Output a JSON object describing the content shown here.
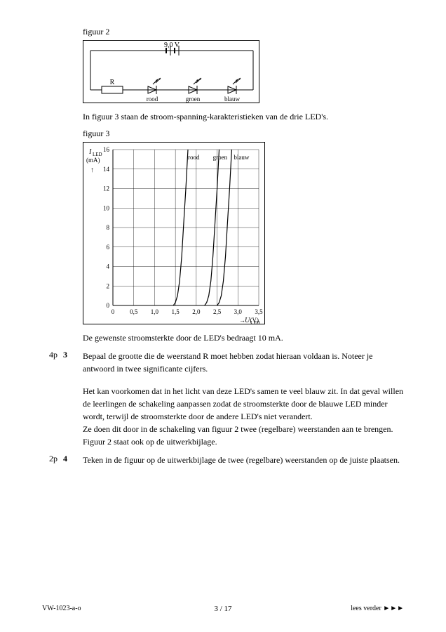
{
  "figure2": {
    "label": "figuur 2",
    "voltage": "9,0 V",
    "resistor_label": "R",
    "led_labels": [
      "rood",
      "groen",
      "blauw"
    ]
  },
  "intro_text": "In figuur 3 staan de stroom-spanning-karakteristieken van de drie LED's.",
  "figure3": {
    "label": "figuur 3",
    "type": "line",
    "y_axis_label_top": "I",
    "y_axis_label_sub": "LED",
    "y_axis_unit": "(mA)",
    "x_axis_label": "U",
    "x_axis_label_sub": "LED",
    "x_axis_unit": "(V)",
    "x_ticks": [
      0,
      0.5,
      1.0,
      1.5,
      2.0,
      2.5,
      3.0,
      3.5
    ],
    "x_tick_labels": [
      "0",
      "0,5",
      "1,0",
      "1,5",
      "2,0",
      "2,5",
      "3,0",
      "3,5"
    ],
    "y_ticks": [
      0,
      2,
      4,
      6,
      8,
      10,
      12,
      14,
      16
    ],
    "xlim": [
      0,
      3.5
    ],
    "ylim": [
      0,
      16
    ],
    "background_color": "#ffffff",
    "grid_color": "#000000",
    "line_color": "#000000",
    "line_width": 1.2,
    "curves": {
      "rood": {
        "label": "rood",
        "points": [
          [
            1.45,
            0
          ],
          [
            1.5,
            0.3
          ],
          [
            1.55,
            1.0
          ],
          [
            1.6,
            2.5
          ],
          [
            1.65,
            5.0
          ],
          [
            1.7,
            8.5
          ],
          [
            1.75,
            12.0
          ],
          [
            1.8,
            16.0
          ]
        ],
        "label_xy": [
          1.8,
          15
        ]
      },
      "groen": {
        "label": "groen",
        "points": [
          [
            2.2,
            0
          ],
          [
            2.25,
            0.3
          ],
          [
            2.3,
            1.0
          ],
          [
            2.35,
            2.5
          ],
          [
            2.4,
            5.0
          ],
          [
            2.45,
            8.5
          ],
          [
            2.5,
            12.0
          ],
          [
            2.55,
            16.0
          ]
        ],
        "label_xy": [
          2.4,
          15
        ]
      },
      "blauw": {
        "label": "blauw",
        "points": [
          [
            2.5,
            0
          ],
          [
            2.55,
            0.3
          ],
          [
            2.6,
            1.0
          ],
          [
            2.65,
            2.5
          ],
          [
            2.7,
            5.0
          ],
          [
            2.75,
            8.5
          ],
          [
            2.8,
            12.0
          ],
          [
            2.85,
            16.0
          ]
        ],
        "label_xy": [
          2.9,
          15
        ]
      }
    }
  },
  "current_text": "De gewenste stroomsterkte door de LED's bedraagt 10 mA.",
  "q3": {
    "points": "4p",
    "num": "3",
    "text": "Bepaal de grootte die de weerstand R moet hebben zodat hieraan voldaan is. Noteer je antwoord in twee significante cijfers."
  },
  "para2": "Het kan voorkomen dat in het licht van deze LED's samen te veel blauw zit. In dat geval willen de leerlingen de schakeling aanpassen zodat de stroomsterkte door de blauwe LED minder wordt, terwijl de stroomsterkte door de andere LED's niet verandert.\nZe doen dit door in de schakeling van figuur 2 twee (regelbare) weerstanden aan te brengen. Figuur 2 staat ook op de uitwerkbijlage.",
  "q4": {
    "points": "2p",
    "num": "4",
    "text": "Teken in de figuur op de uitwerkbijlage de twee (regelbare) weerstanden op de juiste plaatsen."
  },
  "footer": {
    "left": "VW-1023-a-o",
    "center": "3 / 17",
    "right": "lees verder ►►►"
  }
}
